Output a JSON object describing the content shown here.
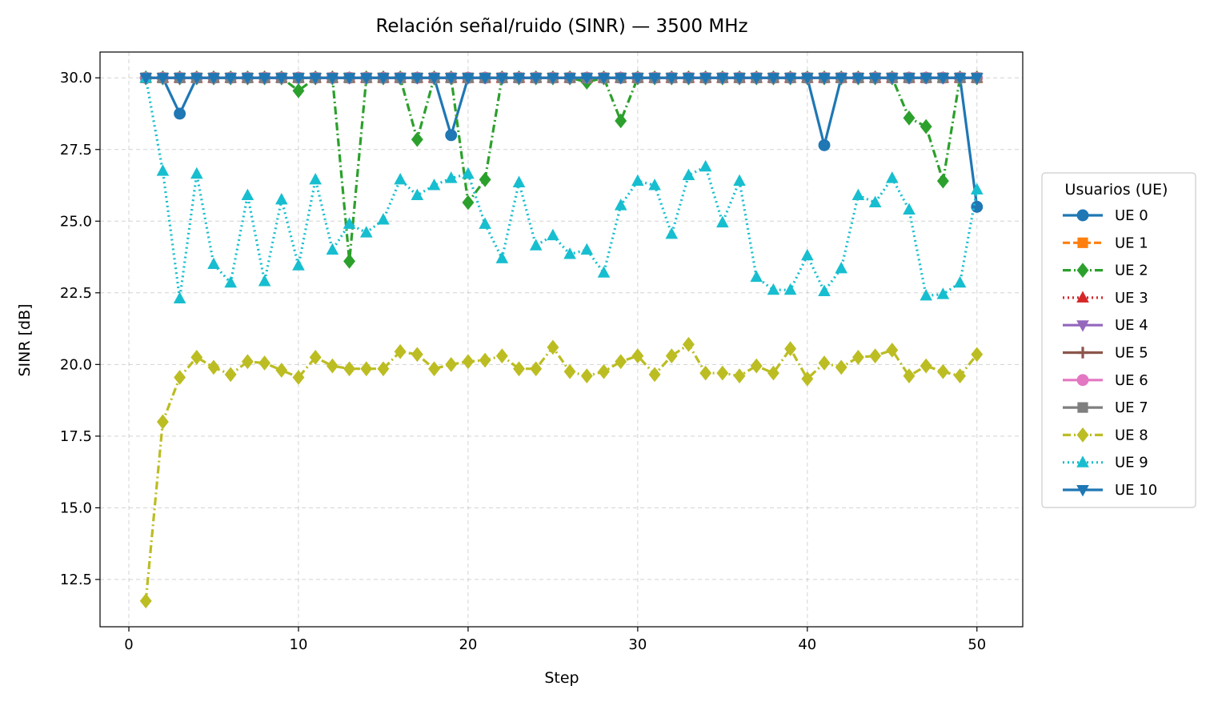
{
  "chart_data": {
    "type": "line",
    "title": "Relación señal/ruido (SINR) — 3500 MHz",
    "xlabel": "Step",
    "ylabel": "SINR [dB]",
    "xlim": [
      -1.7,
      52.7
    ],
    "ylim": [
      10.85,
      30.9
    ],
    "xticks": [
      0,
      10,
      20,
      30,
      40,
      50
    ],
    "yticks": [
      12.5,
      15.0,
      17.5,
      20.0,
      22.5,
      25.0,
      27.5,
      30.0
    ],
    "ytick_labels": [
      "12.5",
      "15.0",
      "17.5",
      "20.0",
      "22.5",
      "25.0",
      "27.5",
      "30.0"
    ],
    "grid": true,
    "legend": {
      "title": "Usuarios (UE)",
      "placement": "right, outside plot"
    },
    "x": [
      1,
      2,
      3,
      4,
      5,
      6,
      7,
      8,
      9,
      10,
      11,
      12,
      13,
      14,
      15,
      16,
      17,
      18,
      19,
      20,
      21,
      22,
      23,
      24,
      25,
      26,
      27,
      28,
      29,
      30,
      31,
      32,
      33,
      34,
      35,
      36,
      37,
      38,
      39,
      40,
      41,
      42,
      43,
      44,
      45,
      46,
      47,
      48,
      49,
      50
    ],
    "series": [
      {
        "name": "UE 0",
        "color": "#1f77b4",
        "dash": "solid",
        "marker": "circle",
        "values": [
          30,
          30,
          28.75,
          30,
          30,
          30,
          30,
          30,
          30,
          30,
          30,
          30,
          30,
          30,
          30,
          30,
          30,
          30,
          28,
          30,
          30,
          30,
          30,
          30,
          30,
          30,
          30,
          30,
          30,
          30,
          30,
          30,
          30,
          30,
          30,
          30,
          30,
          30,
          30,
          30,
          27.65,
          30,
          30,
          30,
          30,
          30,
          30,
          30,
          30,
          25.5
        ]
      },
      {
        "name": "UE 1",
        "color": "#ff7f0e",
        "dash": "dashed",
        "marker": "square",
        "values": [
          30,
          30,
          30,
          30,
          30,
          30,
          30,
          30,
          30,
          30,
          30,
          30,
          30,
          30,
          30,
          30,
          30,
          30,
          30,
          30,
          30,
          30,
          30,
          30,
          30,
          30,
          30,
          30,
          30,
          30,
          30,
          30,
          30,
          30,
          30,
          30,
          30,
          30,
          30,
          30,
          30,
          30,
          30,
          30,
          30,
          30,
          30,
          30,
          30,
          30
        ]
      },
      {
        "name": "UE 2",
        "color": "#2ca02c",
        "dash": "dashdot",
        "marker": "diamond",
        "values": [
          30,
          30,
          30,
          30,
          30,
          30,
          30,
          30,
          30,
          29.55,
          30,
          30,
          23.6,
          30,
          30,
          30,
          27.85,
          30,
          30,
          25.65,
          26.45,
          30,
          30,
          30,
          30,
          30,
          29.85,
          30,
          28.5,
          30,
          30,
          30,
          30,
          30,
          30,
          30,
          30,
          30,
          30,
          30,
          30,
          30,
          30,
          30,
          30,
          28.6,
          28.3,
          26.4,
          30,
          30
        ]
      },
      {
        "name": "UE 3",
        "color": "#d62728",
        "dash": "dotted",
        "marker": "triangle-up",
        "values": [
          30,
          30,
          30,
          30,
          30,
          30,
          30,
          30,
          30,
          30,
          30,
          30,
          30,
          30,
          30,
          30,
          30,
          30,
          30,
          30,
          30,
          30,
          30,
          30,
          30,
          30,
          30,
          30,
          30,
          30,
          30,
          30,
          30,
          30,
          30,
          30,
          30,
          30,
          30,
          30,
          30,
          30,
          30,
          30,
          30,
          30,
          30,
          30,
          30,
          30
        ]
      },
      {
        "name": "UE 4",
        "color": "#9467bd",
        "dash": "solid",
        "marker": "triangle-down",
        "values": [
          30,
          30,
          30,
          30,
          30,
          30,
          30,
          30,
          30,
          30,
          30,
          30,
          30,
          30,
          30,
          30,
          30,
          30,
          30,
          30,
          30,
          30,
          30,
          30,
          30,
          30,
          30,
          30,
          30,
          30,
          30,
          30,
          30,
          30,
          30,
          30,
          30,
          30,
          30,
          30,
          30,
          30,
          30,
          30,
          30,
          30,
          30,
          30,
          30,
          30
        ]
      },
      {
        "name": "UE 5",
        "color": "#8c564b",
        "dash": "solid",
        "marker": "plus",
        "values": [
          30,
          30,
          30,
          30,
          30,
          30,
          30,
          30,
          30,
          30,
          30,
          30,
          30,
          30,
          30,
          30,
          30,
          30,
          30,
          30,
          30,
          30,
          30,
          30,
          30,
          30,
          30,
          30,
          30,
          30,
          30,
          30,
          30,
          30,
          30,
          30,
          30,
          30,
          30,
          30,
          30,
          30,
          30,
          30,
          30,
          30,
          30,
          30,
          30,
          30
        ]
      },
      {
        "name": "UE 6",
        "color": "#e377c2",
        "dash": "solid",
        "marker": "circle",
        "values": [
          30,
          30,
          30,
          30,
          30,
          30,
          30,
          30,
          30,
          30,
          30,
          30,
          30,
          30,
          30,
          30,
          30,
          30,
          30,
          30,
          30,
          30,
          30,
          30,
          30,
          30,
          30,
          30,
          30,
          30,
          30,
          30,
          30,
          30,
          30,
          30,
          30,
          30,
          30,
          30,
          30,
          30,
          30,
          30,
          30,
          30,
          30,
          30,
          30,
          30
        ]
      },
      {
        "name": "UE 7",
        "color": "#7f7f7f",
        "dash": "solid",
        "marker": "square",
        "values": [
          30,
          30,
          30,
          30,
          30,
          30,
          30,
          30,
          30,
          30,
          30,
          30,
          30,
          30,
          30,
          30,
          30,
          30,
          30,
          30,
          30,
          30,
          30,
          30,
          30,
          30,
          30,
          30,
          30,
          30,
          30,
          30,
          30,
          30,
          30,
          30,
          30,
          30,
          30,
          30,
          30,
          30,
          30,
          30,
          30,
          30,
          30,
          30,
          30,
          30
        ]
      },
      {
        "name": "UE 8",
        "color": "#bcbd22",
        "dash": "dashdot",
        "marker": "diamond",
        "values": [
          11.75,
          18,
          19.55,
          20.25,
          19.9,
          19.65,
          20.1,
          20.05,
          19.8,
          19.55,
          20.25,
          19.95,
          19.85,
          19.85,
          19.85,
          20.45,
          20.35,
          19.85,
          20,
          20.1,
          20.15,
          20.3,
          19.85,
          19.85,
          20.6,
          19.75,
          19.6,
          19.75,
          20.1,
          20.3,
          19.65,
          20.3,
          20.7,
          19.7,
          19.7,
          19.6,
          19.95,
          19.7,
          20.55,
          19.5,
          20.05,
          19.9,
          20.25,
          20.3,
          20.5,
          19.6,
          19.95,
          19.75,
          19.6,
          20.35
        ]
      },
      {
        "name": "UE 9",
        "color": "#17becf",
        "dash": "dotted",
        "marker": "triangle-up",
        "values": [
          30,
          26.75,
          22.3,
          26.65,
          23.5,
          22.85,
          25.9,
          22.9,
          25.75,
          23.45,
          26.45,
          24,
          24.9,
          24.6,
          25.05,
          26.45,
          25.9,
          26.25,
          26.5,
          26.65,
          24.9,
          23.7,
          26.35,
          24.15,
          24.5,
          23.85,
          24,
          23.2,
          25.55,
          26.4,
          26.25,
          24.55,
          26.6,
          26.9,
          24.95,
          26.4,
          23.05,
          22.6,
          22.6,
          23.8,
          22.55,
          23.35,
          25.9,
          25.65,
          26.5,
          25.4,
          22.4,
          22.45,
          22.85,
          26.1
        ]
      },
      {
        "name": "UE 10",
        "color": "#1f77b4",
        "dash": "solid",
        "marker": "triangle-down",
        "values": [
          30,
          30,
          30,
          30,
          30,
          30,
          30,
          30,
          30,
          30,
          30,
          30,
          30,
          30,
          30,
          30,
          30,
          30,
          30,
          30,
          30,
          30,
          30,
          30,
          30,
          30,
          30,
          30,
          30,
          30,
          30,
          30,
          30,
          30,
          30,
          30,
          30,
          30,
          30,
          30,
          30,
          30,
          30,
          30,
          30,
          30,
          30,
          30,
          30,
          30
        ]
      }
    ]
  }
}
